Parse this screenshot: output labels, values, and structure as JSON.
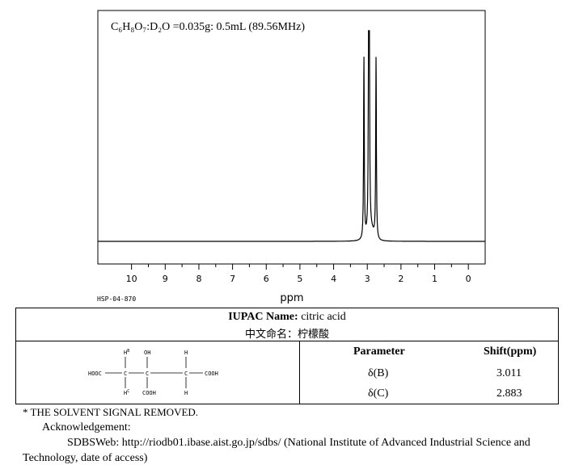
{
  "chart_data": {
    "type": "line",
    "title_formula": "C₆H₈O₇:D₂O =0.035g: 0.5mL (89.56MHz)",
    "xlabel": "ppm",
    "xlim": [
      11.0,
      -0.5
    ],
    "x_ticks": [
      "10",
      "9",
      "8",
      "7",
      "6",
      "5",
      "4",
      "3",
      "2",
      "1",
      "0"
    ],
    "peaks": [
      {
        "x": 3.1,
        "height": 0.86
      },
      {
        "x": 2.96,
        "height": 0.92
      },
      {
        "x": 2.94,
        "height": 0.97
      },
      {
        "x": 2.74,
        "height": 0.86
      }
    ],
    "baseline_level": 0.0,
    "grid": false
  },
  "spectrum_code": "HSP-04-870",
  "table": {
    "iupac_label": "IUPAC Name:",
    "iupac_value": "citric acid",
    "chinese_label": "中文命名：",
    "chinese_value": "柠檬酸",
    "param_header": "Parameter",
    "shift_header": "Shift(ppm)",
    "rows": [
      {
        "param": "δ(B)",
        "shift": "3.011"
      },
      {
        "param": "δ(C)",
        "shift": "2.883"
      }
    ]
  },
  "structure": {
    "hb": "H",
    "hb_sup": "B",
    "oh": "OH",
    "h_right_top": "H",
    "hooc": "HOOC",
    "cooh_right": "COOH",
    "hc": "H",
    "hc_sup": "C",
    "cooh_bottom": "COOH",
    "h_right_bottom": "H",
    "carbon": "C"
  },
  "footer": {
    "note": "* THE SOLVENT SIGNAL REMOVED.",
    "ack": "Acknowledgement:",
    "line1": "SDBSWeb: http://riodb01.ibase.aist.go.jp/sdbs/ (National Institute of Advanced Industrial Science and",
    "line2": "Technology, date of access)"
  }
}
